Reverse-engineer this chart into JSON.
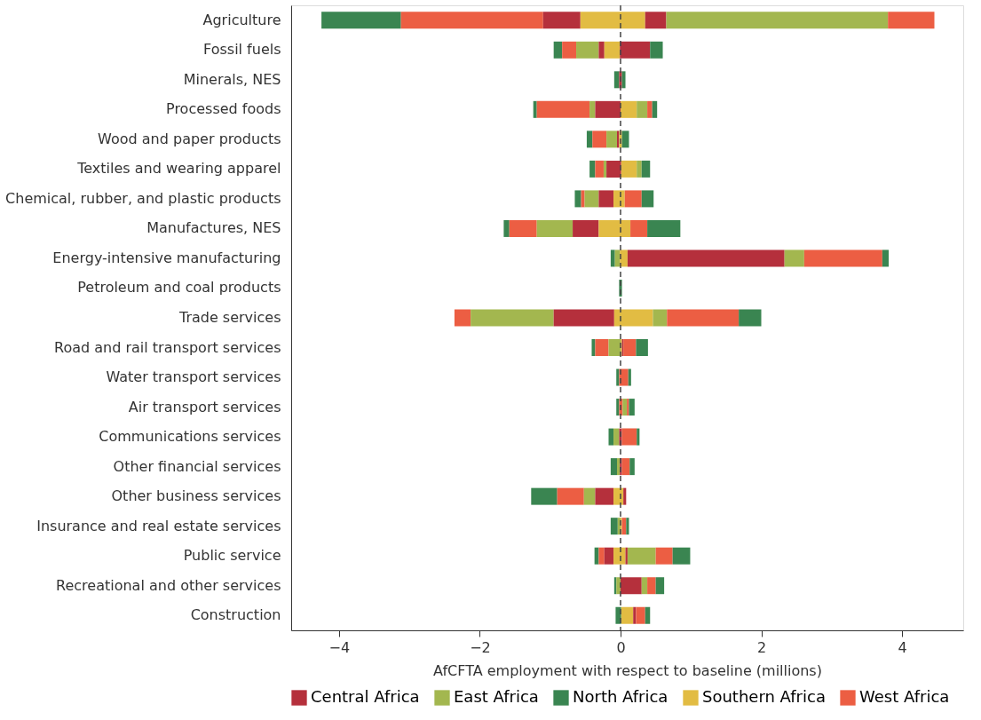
{
  "chart_data": {
    "type": "bar",
    "orientation": "horizontal",
    "categories": [
      "Agriculture",
      "Fossil fuels",
      "Minerals, NES",
      "Processed foods",
      "Wood and paper products",
      "Textiles and wearing apparel",
      "Chemical, rubber, and plastic products",
      "Manufactures, NES",
      "Energy-intensive manufacturing",
      "Petroleum and coal products",
      "Trade services",
      "Road and rail transport services",
      "Water transport services",
      "Air transport services",
      "Communications services",
      "Other financial services",
      "Other business services",
      "Insurance and real estate services",
      "Public service",
      "Recreational and other services",
      "Construction"
    ],
    "series": [
      {
        "name": "North Africa",
        "color": "#3a8551",
        "base": [
          -4.25,
          -0.95,
          -0.09,
          -1.24,
          -0.48,
          -0.44,
          -0.65,
          -1.66,
          -0.14,
          -0.02,
          null,
          -0.41,
          -0.06,
          -0.06,
          -0.17,
          -0.14,
          -1.27,
          -0.14,
          -0.37,
          -0.09,
          -0.07
        ],
        "values": [
          1.13,
          0.12,
          0.07,
          0.05,
          0.08,
          0.08,
          0.09,
          0.08,
          0.06,
          0.04,
          null,
          0.05,
          0.04,
          0.04,
          0.07,
          0.09,
          0.37,
          0.1,
          0.06,
          0.03,
          0.08
        ]
      },
      {
        "name": "West Africa",
        "color": "#ec5e43",
        "base": [
          -3.12,
          -0.83,
          null,
          -1.19,
          -0.4,
          -0.36,
          -0.56,
          -1.58,
          null,
          null,
          -2.36,
          -0.36,
          -0.02,
          -0.02,
          null,
          null,
          -0.9,
          null,
          -0.31,
          null,
          null
        ],
        "values": [
          2.02,
          0.2,
          null,
          0.75,
          0.2,
          0.12,
          0.05,
          0.39,
          null,
          null,
          0.23,
          0.19,
          0.13,
          0.05,
          null,
          null,
          0.38,
          null,
          0.08,
          null,
          null
        ]
      },
      {
        "name": "East Africa",
        "color": "#a3b74f",
        "base": [
          null,
          -0.63,
          null,
          -0.44,
          -0.2,
          -0.24,
          -0.51,
          -1.19,
          -0.08,
          null,
          -2.13,
          -0.17,
          null,
          0.03,
          -0.1,
          -0.05,
          -0.52,
          -0.04,
          null,
          -0.06,
          null
        ],
        "values": [
          null,
          0.32,
          null,
          0.08,
          0.15,
          0.04,
          0.2,
          0.51,
          0.07,
          null,
          1.18,
          0.17,
          null,
          0.06,
          0.08,
          0.04,
          0.16,
          0.04,
          null,
          0.06,
          null
        ]
      },
      {
        "name": "Central Africa",
        "color": "#b5303c",
        "base": [
          -1.1,
          -0.31,
          -0.02,
          -0.36,
          -0.05,
          -0.2,
          -0.31,
          -0.68,
          null,
          null,
          -0.95,
          null,
          null,
          null,
          -0.02,
          -0.01,
          -0.36,
          null,
          -0.23,
          0,
          null
        ],
        "values": [
          0.53,
          0.08,
          0.04,
          0.36,
          0.03,
          0.21,
          0.21,
          0.37,
          null,
          null,
          0.86,
          null,
          null,
          null,
          0.04,
          0.03,
          0.26,
          null,
          0.13,
          0.3,
          null
        ]
      },
      {
        "name": "Southern Africa",
        "color": "#e2bc43",
        "base": [
          -0.57,
          -0.23,
          null,
          0,
          -0.02,
          0.01,
          -0.1,
          -0.31,
          -0.01,
          null,
          -0.09,
          0,
          null,
          null,
          null,
          null,
          -0.1,
          0,
          -0.1,
          null,
          0.01
        ],
        "values": [
          0.92,
          0.22,
          null,
          0.23,
          0.04,
          0.22,
          0.16,
          0.45,
          0.11,
          null,
          0.55,
          0.02,
          null,
          null,
          null,
          null,
          0.14,
          0.02,
          0.17,
          null,
          0.17
        ]
      },
      {
        "color": "#b5303c",
        "base": [
          0.35,
          -0.01,
          null,
          null,
          null,
          null,
          null,
          null,
          0.1,
          null,
          null,
          0.02,
          null,
          null,
          null,
          null,
          0.04,
          null,
          0.07,
          null,
          0.18
        ],
        "values": [
          0.3,
          0.43,
          null,
          null,
          null,
          null,
          null,
          null,
          2.23,
          null,
          null,
          0.02,
          null,
          null,
          null,
          null,
          0.04,
          null,
          0.03,
          null,
          0.04
        ]
      },
      {
        "color": "#a3b74f",
        "base": [
          0.65,
          null,
          null,
          0.23,
          null,
          0.23,
          null,
          null,
          2.33,
          null,
          0.46,
          null,
          null,
          null,
          null,
          null,
          null,
          null,
          0.1,
          0.3,
          null
        ],
        "values": [
          3.15,
          null,
          null,
          0.15,
          null,
          0.07,
          null,
          null,
          0.28,
          null,
          0.2,
          null,
          null,
          null,
          null,
          null,
          null,
          null,
          0.4,
          0.08,
          null
        ]
      },
      {
        "color": "#ec5e43",
        "base": [
          3.8,
          null,
          null,
          0.38,
          null,
          null,
          0.06,
          0.14,
          2.61,
          null,
          0.66,
          0.04,
          null,
          0.09,
          0.02,
          0.02,
          null,
          0.02,
          0.5,
          0.38,
          0.22
        ],
        "values": [
          0.66,
          null,
          null,
          0.07,
          null,
          null,
          0.24,
          0.24,
          1.11,
          null,
          1.02,
          0.18,
          null,
          0.03,
          0.21,
          0.11,
          null,
          0.06,
          0.24,
          0.12,
          0.13
        ]
      },
      {
        "color": "#3a8551",
        "base": [
          null,
          0.42,
          0.02,
          0.45,
          0.02,
          0.3,
          0.3,
          0.38,
          3.72,
          null,
          1.68,
          0.22,
          0.11,
          0.12,
          0.23,
          0.13,
          null,
          0.08,
          0.74,
          0.5,
          0.35
        ],
        "values": [
          null,
          0.18,
          0.05,
          0.07,
          0.1,
          0.12,
          0.17,
          0.47,
          0.09,
          null,
          0.32,
          0.17,
          0.04,
          0.08,
          0.04,
          0.07,
          null,
          0.04,
          0.25,
          0.12,
          0.07
        ]
      }
    ],
    "xlim": [
      -4.68,
      4.87
    ],
    "xticks": [
      {
        "value": -4,
        "label": "−4"
      },
      {
        "value": -2,
        "label": "−2"
      },
      0,
      2,
      4
    ],
    "xlabel": "AfCFTA employment with respect to baseline (millions)",
    "ref_lines": [
      {
        "axis": "x",
        "value": 0,
        "line_style": "dashed",
        "color": "#444444"
      }
    ],
    "grid": false,
    "legend": "bottom"
  }
}
